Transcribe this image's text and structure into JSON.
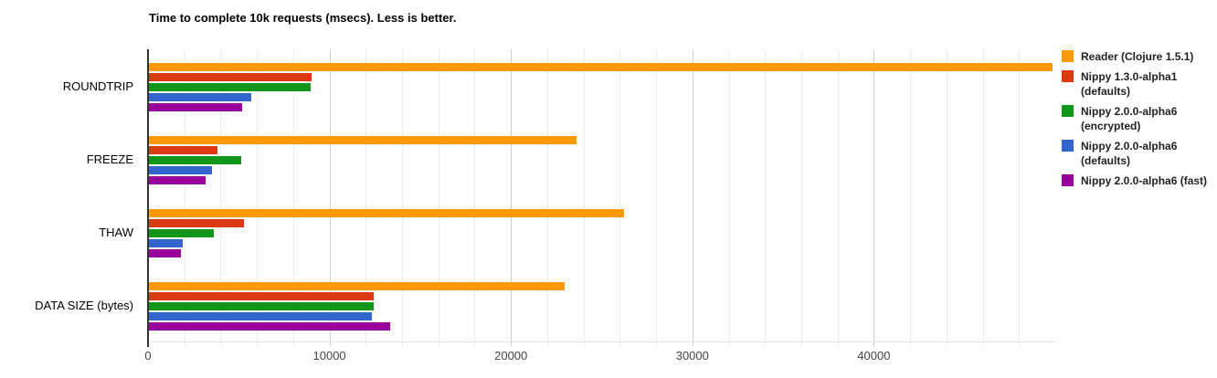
{
  "chart_data": {
    "type": "bar",
    "orientation": "horizontal",
    "title": "Time to complete 10k requests (msecs). Less is better.",
    "categories": [
      "ROUNDTRIP",
      "FREEZE",
      "THAW",
      "DATA SIZE (bytes)"
    ],
    "series": [
      {
        "name": "Reader (Clojure 1.5.1)",
        "color": "#FF9900",
        "values": [
          49850,
          23600,
          26250,
          22950
        ]
      },
      {
        "name": "Nippy 1.3.0-alpha1 (defaults)",
        "color": "#DC3912",
        "values": [
          9020,
          3830,
          5290,
          12420
        ]
      },
      {
        "name": "Nippy 2.0.0-alpha6 (encrypted)",
        "color": "#109618",
        "values": [
          8980,
          5120,
          3620,
          12450
        ]
      },
      {
        "name": "Nippy 2.0.0-alpha6 (defaults)",
        "color": "#3366CC",
        "values": [
          5680,
          3500,
          1910,
          12360
        ]
      },
      {
        "name": "Nippy 2.0.0-alpha6 (fast)",
        "color": "#990099",
        "values": [
          5170,
          3160,
          1810,
          13350
        ]
      }
    ],
    "x_axis": {
      "min": 0,
      "max": 50000,
      "tick_interval": 10000,
      "minor_grid_interval": 2000,
      "tick_labels": [
        "0",
        "10000",
        "20000",
        "30000",
        "40000"
      ]
    },
    "legend": {
      "position": "right"
    },
    "grid": true,
    "colors": {
      "background": "#FFFFFF",
      "title": "#000000",
      "category_label": "#000000",
      "tick_label": "#444444",
      "legend_text": "#222222",
      "axis": "#333333",
      "minor_grid": "#ECECEC",
      "major_grid": "#CCCCCC",
      "plot_bottom_line": "#E2E2E2"
    }
  }
}
